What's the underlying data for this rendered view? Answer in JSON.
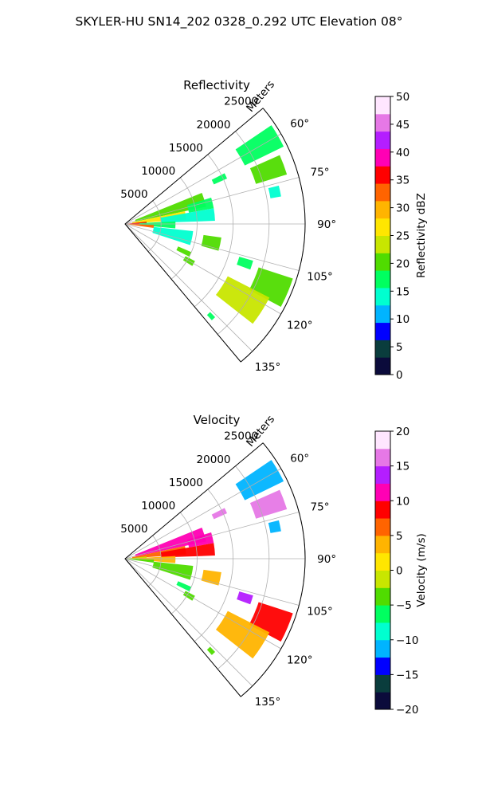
{
  "figure_title": "SKYLER-HU  SN14_202  0328_0.292 UTC Elevation 08°",
  "chart_data": [
    {
      "type": "heatmap",
      "plot": "polar-sector",
      "title": "Reflectivity",
      "radial_label": "Meters",
      "r_ticks": [
        5000,
        10000,
        15000,
        20000,
        25000
      ],
      "r_tick_labels": [
        "5000",
        "10000",
        "15000",
        "20000",
        "25000"
      ],
      "rlim": [
        0,
        25000
      ],
      "theta_ticks": [
        60,
        75,
        90,
        105,
        120,
        135
      ],
      "theta_tick_labels": [
        "60°",
        "75°",
        "90°",
        "105°",
        "120°",
        "135°"
      ],
      "theta_range": [
        50,
        140
      ],
      "grid": true,
      "colorbar": {
        "label": "Reflectivity dBZ",
        "vmin": 0,
        "vmax": 50,
        "ticks": [
          0,
          5,
          10,
          15,
          20,
          25,
          30,
          35,
          40,
          45,
          50
        ],
        "tick_labels": [
          "0",
          "5",
          "10",
          "15",
          "20",
          "25",
          "30",
          "35",
          "40",
          "45",
          "50"
        ],
        "stops": [
          "#0b0b3b",
          "#0a3d3d",
          "#0000ff",
          "#00b4ff",
          "#00ffd0",
          "#00ff60",
          "#50dc00",
          "#c8e600",
          "#ffe600",
          "#ffb400",
          "#ff6400",
          "#ff0000",
          "#ff00b4",
          "#b41eff",
          "#e678e6",
          "#ffe6ff"
        ]
      },
      "echoes": [
        {
          "az_from": 56,
          "az_to": 64,
          "r_from": 18500,
          "r_to": 24500,
          "value": 18
        },
        {
          "az_from": 66,
          "az_to": 73,
          "r_from": 19000,
          "r_to": 23500,
          "value": 21
        },
        {
          "az_from": 63,
          "az_to": 66,
          "r_from": 13500,
          "r_to": 15500,
          "value": 17
        },
        {
          "az_from": 76,
          "az_to": 80,
          "r_from": 20500,
          "r_to": 22000,
          "value": 14
        },
        {
          "az_from": 68,
          "az_to": 78,
          "r_from": 1500,
          "r_to": 11500,
          "value": 20
        },
        {
          "az_from": 73,
          "az_to": 80,
          "r_from": 9000,
          "r_to": 12500,
          "value": 16
        },
        {
          "az_from": 78,
          "az_to": 86,
          "r_from": 1000,
          "r_to": 8500,
          "value": 28
        },
        {
          "az_from": 80,
          "az_to": 88,
          "r_from": 5000,
          "r_to": 12500,
          "value": 14
        },
        {
          "az_from": 84,
          "az_to": 92,
          "r_from": 0,
          "r_to": 3000,
          "value": 36
        },
        {
          "az_from": 87,
          "az_to": 95,
          "r_from": 2000,
          "r_to": 7000,
          "value": 18
        },
        {
          "az_from": 92,
          "az_to": 98,
          "r_from": 0,
          "r_to": 4000,
          "value": 32
        },
        {
          "az_from": 96,
          "az_to": 108,
          "r_from": 4000,
          "r_to": 9500,
          "value": 13
        },
        {
          "az_from": 98,
          "az_to": 106,
          "r_from": 11000,
          "r_to": 13500,
          "value": 19
        },
        {
          "az_from": 113,
          "az_to": 117,
          "r_from": 8000,
          "r_to": 10000,
          "value": 19
        },
        {
          "az_from": 118,
          "az_to": 122,
          "r_from": 9500,
          "r_to": 11000,
          "value": 21
        },
        {
          "az_from": 106,
          "az_to": 110,
          "r_from": 16500,
          "r_to": 18500,
          "value": 18
        },
        {
          "az_from": 108,
          "az_to": 118,
          "r_from": 19500,
          "r_to": 24500,
          "value": 20
        },
        {
          "az_from": 117,
          "az_to": 128,
          "r_from": 16000,
          "r_to": 22500,
          "value": 22
        },
        {
          "az_from": 136,
          "az_to": 138,
          "r_from": 17000,
          "r_to": 18000,
          "value": 18
        }
      ]
    },
    {
      "type": "heatmap",
      "plot": "polar-sector",
      "title": "Velocity",
      "radial_label": "Meters",
      "r_ticks": [
        5000,
        10000,
        15000,
        20000,
        25000
      ],
      "r_tick_labels": [
        "5000",
        "10000",
        "15000",
        "20000",
        "25000"
      ],
      "rlim": [
        0,
        25000
      ],
      "theta_ticks": [
        60,
        75,
        90,
        105,
        120,
        135
      ],
      "theta_tick_labels": [
        "60°",
        "75°",
        "90°",
        "105°",
        "120°",
        "135°"
      ],
      "theta_range": [
        50,
        140
      ],
      "grid": true,
      "colorbar": {
        "label": "Velocity (m/s)",
        "vmin": -20,
        "vmax": 20,
        "ticks": [
          -20,
          -15,
          -10,
          -5,
          0,
          5,
          10,
          15,
          20
        ],
        "tick_labels": [
          "−20",
          "−15",
          "−10",
          "−5",
          "0",
          "5",
          "10",
          "15",
          "20"
        ],
        "stops": [
          "#0b0b3b",
          "#0a3d3d",
          "#0000ff",
          "#00b4ff",
          "#00ffd0",
          "#00ff60",
          "#50dc00",
          "#c8e600",
          "#ffe600",
          "#ffb400",
          "#ff6400",
          "#ff0000",
          "#ff00b4",
          "#b41eff",
          "#e678e6",
          "#ffe6ff"
        ]
      },
      "echoes": [
        {
          "az_from": 56,
          "az_to": 64,
          "r_from": 18500,
          "r_to": 24500,
          "value": -12
        },
        {
          "az_from": 66,
          "az_to": 73,
          "r_from": 19000,
          "r_to": 23500,
          "value": 16
        },
        {
          "az_from": 63,
          "az_to": 66,
          "r_from": 13500,
          "r_to": 15500,
          "value": 16
        },
        {
          "az_from": 76,
          "az_to": 80,
          "r_from": 20500,
          "r_to": 22000,
          "value": -11
        },
        {
          "az_from": 68,
          "az_to": 78,
          "r_from": 1500,
          "r_to": 11500,
          "value": 10
        },
        {
          "az_from": 73,
          "az_to": 80,
          "r_from": 9000,
          "r_to": 12500,
          "value": 11
        },
        {
          "az_from": 78,
          "az_to": 86,
          "r_from": 1000,
          "r_to": 8500,
          "value": 7
        },
        {
          "az_from": 80,
          "az_to": 88,
          "r_from": 5000,
          "r_to": 12500,
          "value": 9
        },
        {
          "az_from": 84,
          "az_to": 92,
          "r_from": 0,
          "r_to": 3000,
          "value": -1
        },
        {
          "az_from": 87,
          "az_to": 95,
          "r_from": 2000,
          "r_to": 7000,
          "value": 3
        },
        {
          "az_from": 92,
          "az_to": 98,
          "r_from": 0,
          "r_to": 4000,
          "value": -3
        },
        {
          "az_from": 96,
          "az_to": 108,
          "r_from": 4000,
          "r_to": 9500,
          "value": -5
        },
        {
          "az_from": 98,
          "az_to": 106,
          "r_from": 11000,
          "r_to": 13500,
          "value": 3
        },
        {
          "az_from": 113,
          "az_to": 117,
          "r_from": 8000,
          "r_to": 10000,
          "value": -6
        },
        {
          "az_from": 118,
          "az_to": 122,
          "r_from": 9500,
          "r_to": 11000,
          "value": -5
        },
        {
          "az_from": 106,
          "az_to": 110,
          "r_from": 16500,
          "r_to": 18500,
          "value": 14
        },
        {
          "az_from": 108,
          "az_to": 118,
          "r_from": 19500,
          "r_to": 24500,
          "value": 8
        },
        {
          "az_from": 117,
          "az_to": 128,
          "r_from": 16000,
          "r_to": 22500,
          "value": 4
        },
        {
          "az_from": 136,
          "az_to": 138,
          "r_from": 17000,
          "r_to": 18000,
          "value": -5
        }
      ]
    }
  ]
}
